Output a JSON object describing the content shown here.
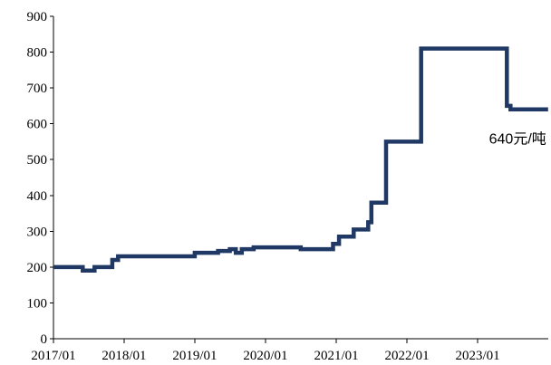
{
  "chart_data": {
    "type": "line",
    "title": "",
    "xlabel": "",
    "ylabel": "",
    "ylim": [
      0,
      900
    ],
    "xlim": [
      "2017/01",
      "2024/01"
    ],
    "y_ticks": [
      "0",
      "100",
      "200",
      "300",
      "400",
      "500",
      "600",
      "700",
      "800",
      "900"
    ],
    "x_ticks": [
      "2017/01",
      "2018/01",
      "2019/01",
      "2020/01",
      "2021/01",
      "2022/01",
      "2023/01"
    ],
    "grid": false,
    "legend": "none",
    "series": [
      {
        "color": "#1f3864",
        "step": true,
        "points": [
          [
            "2017-01-01",
            200
          ],
          [
            "2017-06-01",
            190
          ],
          [
            "2017-08-01",
            200
          ],
          [
            "2017-11-01",
            220
          ],
          [
            "2017-12-01",
            230
          ],
          [
            "2019-01-01",
            240
          ],
          [
            "2019-05-01",
            245
          ],
          [
            "2019-07-01",
            250
          ],
          [
            "2019-08-01",
            240
          ],
          [
            "2019-09-01",
            250
          ],
          [
            "2019-11-01",
            255
          ],
          [
            "2020-07-01",
            250
          ],
          [
            "2020-12-15",
            265
          ],
          [
            "2021-01-15",
            285
          ],
          [
            "2021-04-01",
            305
          ],
          [
            "2021-06-15",
            325
          ],
          [
            "2021-07-01",
            380
          ],
          [
            "2021-09-15",
            550
          ],
          [
            "2022-03-15",
            810
          ],
          [
            "2023-06-01",
            650
          ],
          [
            "2023-06-20",
            640
          ],
          [
            "2023-12-31",
            640
          ]
        ]
      }
    ],
    "annotations": [
      {
        "text": "640元/吨",
        "x": "2023-03-01",
        "y": 545
      }
    ]
  }
}
